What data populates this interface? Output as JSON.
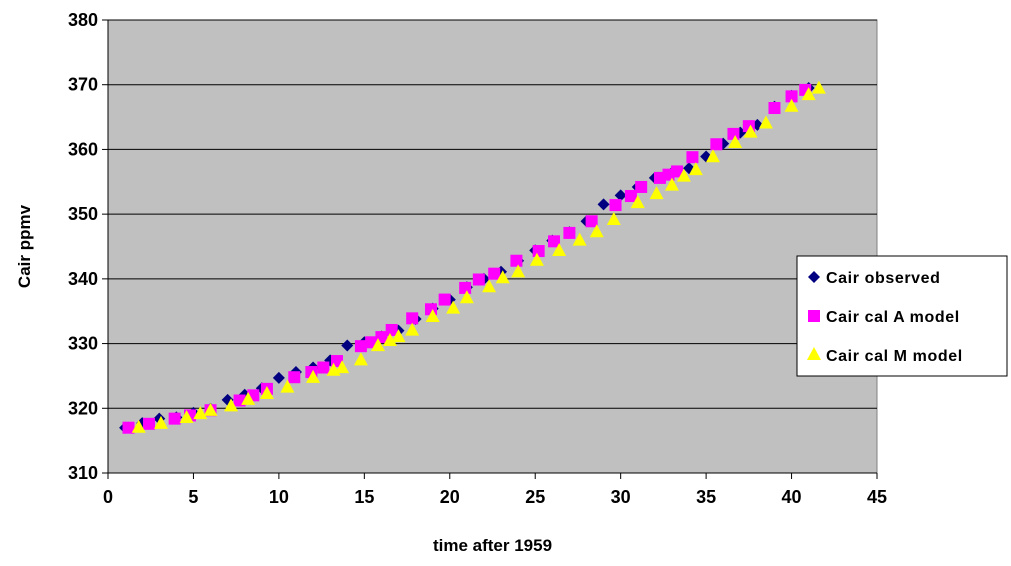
{
  "chart_data": {
    "type": "scatter",
    "xlabel": "time after 1959",
    "ylabel": "Cair ppmv",
    "xlim": [
      0,
      45
    ],
    "ylim": [
      310,
      380
    ],
    "xticks": [
      0,
      5,
      10,
      15,
      20,
      25,
      30,
      35,
      40,
      45
    ],
    "yticks": [
      310,
      320,
      330,
      340,
      350,
      360,
      370,
      380
    ],
    "grid": "horizontal",
    "plot_background": "#c0c0c0",
    "legend_position": "right",
    "series": [
      {
        "name": "Cair observed",
        "marker": "diamond",
        "color": "#000080",
        "points": [
          [
            1,
            317.0
          ],
          [
            2,
            317.7
          ],
          [
            3,
            318.4
          ],
          [
            4,
            318.6
          ],
          [
            5,
            319.3
          ],
          [
            6,
            319.9
          ],
          [
            7,
            321.3
          ],
          [
            8,
            322.1
          ],
          [
            9,
            323.1
          ],
          [
            10,
            324.7
          ],
          [
            11,
            325.6
          ],
          [
            12,
            326.3
          ],
          [
            13,
            327.4
          ],
          [
            14,
            329.7
          ],
          [
            15,
            330.2
          ],
          [
            16,
            331.1
          ],
          [
            17,
            332.0
          ],
          [
            18,
            333.8
          ],
          [
            19,
            335.4
          ],
          [
            20,
            336.8
          ],
          [
            21,
            338.7
          ],
          [
            22,
            340.0
          ],
          [
            23,
            341.1
          ],
          [
            24,
            342.8
          ],
          [
            25,
            344.4
          ],
          [
            26,
            345.9
          ],
          [
            27,
            347.2
          ],
          [
            28,
            348.9
          ],
          [
            29,
            351.5
          ],
          [
            30,
            352.9
          ],
          [
            31,
            354.2
          ],
          [
            32,
            355.6
          ],
          [
            33,
            356.4
          ],
          [
            34,
            357.1
          ],
          [
            35,
            358.9
          ],
          [
            36,
            360.9
          ],
          [
            37,
            362.6
          ],
          [
            38,
            363.8
          ],
          [
            39,
            366.6
          ],
          [
            40,
            368.3
          ],
          [
            41,
            369.5
          ]
        ]
      },
      {
        "name": "Cair cal A model",
        "marker": "square",
        "color": "#ff00ff",
        "points": [
          [
            1.2,
            317.0
          ],
          [
            2.4,
            317.6
          ],
          [
            3.9,
            318.4
          ],
          [
            4.8,
            318.9
          ],
          [
            6.0,
            319.7
          ],
          [
            7.7,
            321.2
          ],
          [
            8.5,
            322.0
          ],
          [
            9.3,
            323.0
          ],
          [
            10.9,
            324.8
          ],
          [
            11.9,
            325.6
          ],
          [
            12.6,
            326.3
          ],
          [
            13.4,
            327.3
          ],
          [
            14.8,
            329.6
          ],
          [
            15.4,
            330.2
          ],
          [
            16.0,
            331.0
          ],
          [
            16.6,
            332.1
          ],
          [
            17.8,
            333.9
          ],
          [
            18.9,
            335.3
          ],
          [
            19.7,
            336.8
          ],
          [
            20.9,
            338.6
          ],
          [
            21.7,
            339.9
          ],
          [
            22.6,
            340.8
          ],
          [
            23.9,
            342.8
          ],
          [
            25.2,
            344.3
          ],
          [
            26.1,
            345.8
          ],
          [
            27.0,
            347.1
          ],
          [
            28.3,
            348.9
          ],
          [
            29.7,
            351.4
          ],
          [
            30.6,
            352.8
          ],
          [
            31.2,
            354.2
          ],
          [
            32.3,
            355.6
          ],
          [
            32.8,
            356.1
          ],
          [
            33.3,
            356.6
          ],
          [
            34.2,
            358.8
          ],
          [
            35.6,
            360.8
          ],
          [
            36.6,
            362.4
          ],
          [
            37.5,
            363.6
          ],
          [
            39.0,
            366.4
          ],
          [
            40.0,
            368.2
          ],
          [
            40.8,
            369.2
          ]
        ]
      },
      {
        "name": "Cair cal M model",
        "marker": "triangle",
        "color": "#ffff00",
        "points": [
          [
            1.8,
            317.0
          ],
          [
            3.1,
            317.6
          ],
          [
            4.6,
            318.5
          ],
          [
            5.4,
            319.1
          ],
          [
            6.0,
            319.6
          ],
          [
            7.2,
            320.3
          ],
          [
            8.2,
            321.3
          ],
          [
            9.3,
            322.2
          ],
          [
            10.5,
            323.2
          ],
          [
            12.0,
            324.7
          ],
          [
            13.2,
            325.8
          ],
          [
            13.7,
            326.2
          ],
          [
            14.8,
            327.4
          ],
          [
            15.8,
            329.6
          ],
          [
            16.5,
            330.4
          ],
          [
            17.0,
            331.0
          ],
          [
            17.8,
            332.0
          ],
          [
            19.0,
            334.1
          ],
          [
            20.2,
            335.4
          ],
          [
            21.0,
            337.0
          ],
          [
            22.3,
            338.7
          ],
          [
            23.1,
            340.1
          ],
          [
            24.0,
            341.0
          ],
          [
            25.1,
            342.8
          ],
          [
            26.4,
            344.3
          ],
          [
            27.6,
            345.9
          ],
          [
            28.6,
            347.2
          ],
          [
            29.6,
            349.1
          ],
          [
            31.0,
            351.7
          ],
          [
            32.1,
            353.1
          ],
          [
            33.0,
            354.4
          ],
          [
            33.7,
            355.8
          ],
          [
            34.4,
            356.8
          ],
          [
            35.4,
            358.8
          ],
          [
            36.7,
            361.0
          ],
          [
            37.6,
            362.6
          ],
          [
            38.5,
            364.0
          ],
          [
            40.0,
            366.6
          ],
          [
            41.0,
            368.4
          ],
          [
            41.6,
            369.4
          ]
        ]
      }
    ]
  }
}
